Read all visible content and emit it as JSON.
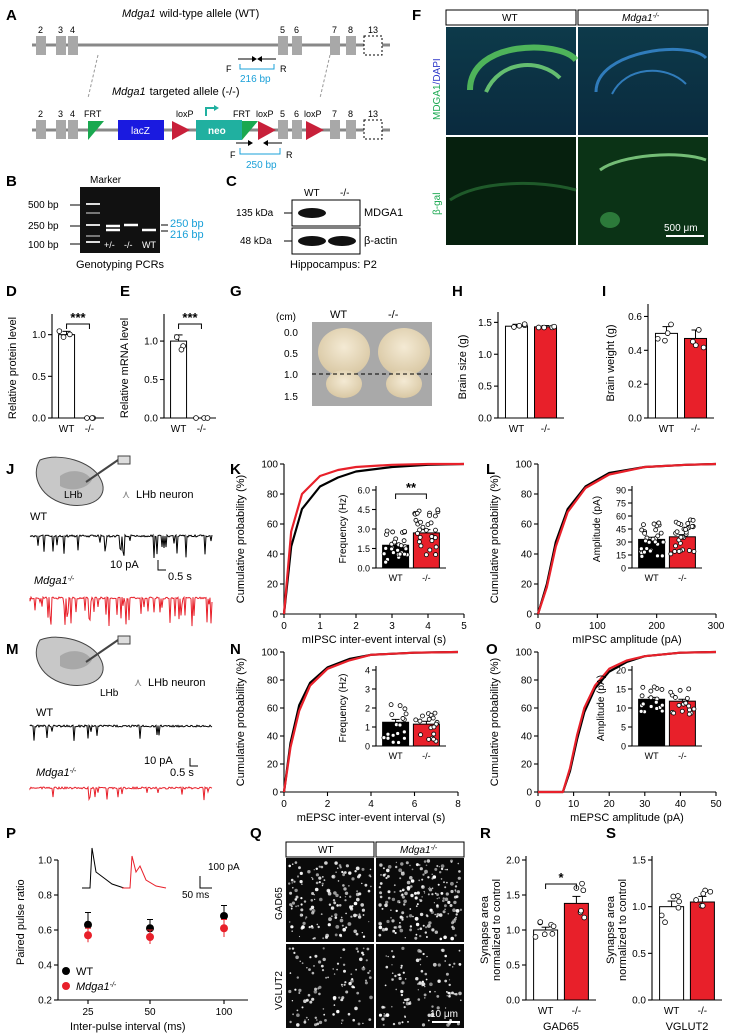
{
  "panels": {
    "A": {
      "label": "A",
      "wt_title_gene": "Mdga1",
      "wt_title_rest": "wild-type allele (WT)",
      "ko_title_gene": "Mdga1",
      "ko_title_rest": "targeted allele (-/-)",
      "exons_top": [
        "2",
        "3",
        "4",
        "5",
        "6",
        "7",
        "8",
        "13"
      ],
      "exons_bottom": [
        "2",
        "3",
        "4",
        "5",
        "6",
        "7",
        "8",
        "13"
      ],
      "primer_f": "F",
      "primer_r": "R",
      "wt_product": "216 bp",
      "ko_product": "250 bp",
      "frt": "FRT",
      "loxp": "loxP",
      "lacz": "lacZ",
      "neo": "neo"
    },
    "B": {
      "label": "B",
      "marker": "Marker",
      "ladder": [
        "500 bp",
        "250 bp",
        "100 bp"
      ],
      "lanes": [
        "+/-",
        "-/-",
        "WT"
      ],
      "band_labels": [
        "250 bp",
        "216 bp"
      ],
      "caption": "Genotyping PCRs"
    },
    "C": {
      "label": "C",
      "lanes": [
        "WT",
        "-/-"
      ],
      "sizes": [
        "135 kDa",
        "48 kDa"
      ],
      "proteins": [
        "MDGA1",
        "β-actin"
      ],
      "caption": "Hippocampus: P2"
    },
    "D": {
      "label": "D",
      "ylabel": "Relative protein level",
      "yticks": [
        "0.0",
        "0.5",
        "1.0"
      ],
      "categories": [
        "WT",
        "-/-"
      ],
      "values": [
        1.0,
        0.0
      ],
      "sig": "***"
    },
    "E": {
      "label": "E",
      "ylabel": "Relative mRNA level",
      "yticks": [
        "0.0",
        "0.5",
        "1.0"
      ],
      "categories": [
        "WT",
        "-/-"
      ],
      "values": [
        1.0,
        0.0
      ],
      "sig": "***"
    },
    "F": {
      "label": "F",
      "col_labels": [
        "WT",
        "Mdga1"
      ],
      "ko_sup": "-/-",
      "row1_a": "MDGA1",
      "row1_b": "/DAPI",
      "row2": "β-gal",
      "scale": "500 μm"
    },
    "G": {
      "label": "G",
      "unit": "(cm)",
      "ruler": [
        "0.0",
        "0.5",
        "1.0",
        "1.5"
      ],
      "cols": [
        "WT",
        "-/-"
      ]
    },
    "H": {
      "label": "H",
      "ylabel": "Brain size (g)",
      "yticks": [
        "0.0",
        "0.5",
        "1.0",
        "1.5"
      ],
      "categories": [
        "WT",
        "-/-"
      ],
      "values": [
        1.44,
        1.43
      ]
    },
    "I": {
      "label": "I",
      "ylabel": "Brain weight (g)",
      "yticks": [
        "0.0",
        "0.2",
        "0.4",
        "0.6"
      ],
      "categories": [
        "WT",
        "-/-"
      ],
      "values": [
        0.5,
        0.47
      ]
    },
    "J": {
      "label": "J",
      "region": "LHb",
      "neuron": "LHb neuron",
      "wt": "WT",
      "ko": "Mdga1",
      "ko_sup": "-/-",
      "scale_y": "10 pA",
      "scale_x": "0.5 s"
    },
    "K": {
      "label": "K",
      "ylabel": "Cumulative probability (%)",
      "xlabel": "mIPSC inter-event interval (s)",
      "xticks": [
        "0",
        "1",
        "2",
        "3",
        "4",
        "5"
      ],
      "yticks": [
        "0",
        "20",
        "40",
        "60",
        "80",
        "100"
      ],
      "inset_ylabel": "Frequency (Hz)",
      "inset_yticks": [
        "0.0",
        "1.5",
        "3.0",
        "4.5",
        "6.0"
      ],
      "inset_categories": [
        "WT",
        "-/-"
      ],
      "inset_values": [
        1.75,
        2.7
      ],
      "sig": "**"
    },
    "L": {
      "label": "L",
      "ylabel": "Cumulative probability (%)",
      "xlabel": "mIPSC amplitude (pA)",
      "xticks": [
        "0",
        "100",
        "200",
        "300"
      ],
      "yticks": [
        "0",
        "20",
        "40",
        "60",
        "80",
        "100"
      ],
      "inset_ylabel": "Amplitude (pA)",
      "inset_yticks": [
        "0",
        "15",
        "30",
        "45",
        "60",
        "75",
        "90"
      ],
      "inset_categories": [
        "WT",
        "-/-"
      ],
      "inset_values": [
        33,
        36
      ]
    },
    "M": {
      "label": "M",
      "region": "LHb",
      "neuron": "LHb neuron",
      "wt": "WT",
      "ko": "Mdga1",
      "ko_sup": "-/-",
      "scale_y": "10 pA",
      "scale_x": "0.5 s"
    },
    "N": {
      "label": "N",
      "ylabel": "Cumulative probability (%)",
      "xlabel": "mEPSC inter-event interval (s)",
      "xticks": [
        "0",
        "2",
        "4",
        "6",
        "8"
      ],
      "yticks": [
        "0",
        "20",
        "40",
        "60",
        "80",
        "100"
      ],
      "inset_ylabel": "Frequency (Hz)",
      "inset_yticks": [
        "0",
        "1",
        "2",
        "3",
        "4"
      ],
      "inset_categories": [
        "WT",
        "-/-"
      ],
      "inset_values": [
        1.25,
        1.15
      ]
    },
    "O": {
      "label": "O",
      "ylabel": "Cumulative probability (%)",
      "xlabel": "mEPSC amplitude (pA)",
      "xticks": [
        "0",
        "10",
        "20",
        "30",
        "40",
        "50"
      ],
      "yticks": [
        "0",
        "20",
        "40",
        "60",
        "80",
        "100"
      ],
      "inset_ylabel": "Amplitude (pA)",
      "inset_yticks": [
        "0",
        "5",
        "10",
        "15",
        "20"
      ],
      "inset_categories": [
        "WT",
        "-/-"
      ],
      "inset_values": [
        12.3,
        11.8
      ]
    },
    "P": {
      "label": "P",
      "ylabel": "Paired pulse ratio",
      "xlabel": "Inter-pulse interval (ms)",
      "xticks": [
        "25",
        "50",
        "100"
      ],
      "yticks": [
        "0.2",
        "0.4",
        "0.6",
        "0.8",
        "1.0"
      ],
      "legend_wt": "WT",
      "legend_ko": "Mdga1",
      "ko_sup": "-/-",
      "scale_y": "100 pA",
      "scale_x": "50 ms"
    },
    "Q": {
      "label": "Q",
      "cols": [
        "WT",
        "Mdga1"
      ],
      "ko_sup": "-/-",
      "rows": [
        "GAD65",
        "VGLUT2"
      ],
      "scale": "10 μm"
    },
    "R": {
      "label": "R",
      "ylabel1": "Synapse area",
      "ylabel2": "normalized to control",
      "yticks": [
        "0.0",
        "0.5",
        "1.0",
        "1.5",
        "2.0"
      ],
      "categories": [
        "WT",
        "-/-"
      ],
      "values": [
        1.0,
        1.38
      ],
      "sig": "*",
      "xlabel": "GAD65"
    },
    "S": {
      "label": "S",
      "ylabel1": "Synapse area",
      "ylabel2": "normalized to control",
      "yticks": [
        "0.0",
        "0.5",
        "1.0",
        "1.5"
      ],
      "categories": [
        "WT",
        "-/-"
      ],
      "values": [
        1.0,
        1.05
      ],
      "xlabel": "VGLUT2"
    }
  },
  "colors": {
    "wt": "#000000",
    "ko": "#e8202a",
    "primer": "#1aa0d8"
  },
  "chart_data": [
    {
      "type": "bar",
      "title": "D",
      "categories": [
        "WT",
        "-/-"
      ],
      "values": [
        1.0,
        0.0
      ],
      "ylabel": "Relative protein level",
      "ylim": [
        0,
        1.2
      ]
    },
    {
      "type": "bar",
      "title": "E",
      "categories": [
        "WT",
        "-/-"
      ],
      "values": [
        1.0,
        0.0
      ],
      "ylabel": "Relative mRNA level",
      "ylim": [
        0,
        1.3
      ]
    },
    {
      "type": "bar",
      "title": "H",
      "categories": [
        "WT",
        "-/-"
      ],
      "values": [
        1.44,
        1.43
      ],
      "ylabel": "Brain size (g)",
      "ylim": [
        0,
        1.6
      ]
    },
    {
      "type": "bar",
      "title": "I",
      "categories": [
        "WT",
        "-/-"
      ],
      "values": [
        0.5,
        0.47
      ],
      "ylabel": "Brain weight (g)",
      "ylim": [
        0,
        0.65
      ]
    },
    {
      "type": "line",
      "title": "K",
      "xlabel": "mIPSC inter-event interval (s)",
      "ylabel": "Cumulative probability (%)",
      "xlim": [
        0,
        5
      ],
      "ylim": [
        0,
        100
      ],
      "series": [
        {
          "name": "WT",
          "x": [
            0,
            0.2,
            0.5,
            1,
            1.5,
            2,
            3,
            4,
            5
          ],
          "y": [
            0,
            45,
            70,
            85,
            91,
            95,
            98,
            99.5,
            100
          ]
        },
        {
          "name": "-/-",
          "x": [
            0,
            0.2,
            0.5,
            1,
            1.5,
            2,
            3,
            4,
            5
          ],
          "y": [
            0,
            55,
            80,
            92,
            96,
            98,
            99.5,
            100,
            100
          ]
        }
      ]
    },
    {
      "type": "bar",
      "title": "K inset",
      "categories": [
        "WT",
        "-/-"
      ],
      "values": [
        1.75,
        2.7
      ],
      "ylabel": "Frequency (Hz)",
      "ylim": [
        0,
        6
      ]
    },
    {
      "type": "line",
      "title": "L",
      "xlabel": "mIPSC amplitude (pA)",
      "ylabel": "Cumulative probability (%)",
      "xlim": [
        0,
        300
      ],
      "ylim": [
        0,
        100
      ],
      "series": [
        {
          "name": "WT",
          "x": [
            0,
            15,
            30,
            50,
            80,
            120,
            180,
            250,
            300
          ],
          "y": [
            0,
            20,
            48,
            70,
            85,
            94,
            98,
            99.5,
            100
          ]
        },
        {
          "name": "-/-",
          "x": [
            0,
            15,
            30,
            50,
            80,
            120,
            180,
            250,
            300
          ],
          "y": [
            0,
            18,
            45,
            68,
            84,
            93,
            98,
            99.5,
            100
          ]
        }
      ]
    },
    {
      "type": "bar",
      "title": "L inset",
      "categories": [
        "WT",
        "-/-"
      ],
      "values": [
        33,
        36
      ],
      "ylabel": "Amplitude (pA)",
      "ylim": [
        0,
        90
      ]
    },
    {
      "type": "line",
      "title": "N",
      "xlabel": "mEPSC inter-event interval (s)",
      "ylabel": "Cumulative probability (%)",
      "xlim": [
        0,
        8
      ],
      "ylim": [
        0,
        100
      ],
      "series": [
        {
          "name": "WT",
          "x": [
            0,
            0.3,
            0.7,
            1.2,
            2,
            3,
            4,
            6,
            8
          ],
          "y": [
            0,
            35,
            62,
            78,
            89,
            95,
            98,
            99.5,
            100
          ]
        },
        {
          "name": "-/-",
          "x": [
            0,
            0.3,
            0.7,
            1.2,
            2,
            3,
            4,
            6,
            8
          ],
          "y": [
            0,
            32,
            58,
            76,
            88,
            94,
            98,
            99.5,
            100
          ]
        }
      ]
    },
    {
      "type": "bar",
      "title": "N inset",
      "categories": [
        "WT",
        "-/-"
      ],
      "values": [
        1.25,
        1.15
      ],
      "ylabel": "Frequency (Hz)",
      "ylim": [
        0,
        4
      ]
    },
    {
      "type": "line",
      "title": "O",
      "xlabel": "mEPSC amplitude (pA)",
      "ylabel": "Cumulative probability (%)",
      "xlim": [
        0,
        50
      ],
      "ylim": [
        0,
        100
      ],
      "series": [
        {
          "name": "WT",
          "x": [
            0,
            7,
            9,
            11,
            13,
            16,
            20,
            25,
            30,
            40,
            50
          ],
          "y": [
            0,
            0,
            15,
            38,
            57,
            74,
            86,
            93,
            97,
            99.5,
            100
          ]
        },
        {
          "name": "-/-",
          "x": [
            0,
            7,
            9,
            11,
            13,
            16,
            20,
            25,
            30,
            40,
            50
          ],
          "y": [
            0,
            0,
            17,
            41,
            60,
            76,
            88,
            94,
            97,
            99.5,
            100
          ]
        }
      ]
    },
    {
      "type": "bar",
      "title": "O inset",
      "categories": [
        "WT",
        "-/-"
      ],
      "values": [
        12.3,
        11.8
      ],
      "ylabel": "Amplitude (pA)",
      "ylim": [
        0,
        20
      ]
    },
    {
      "type": "scatter",
      "title": "P",
      "xlabel": "Inter-pulse interval (ms)",
      "ylabel": "Paired pulse ratio",
      "ylim": [
        0.2,
        1.0
      ],
      "categories": [
        "25",
        "50",
        "100"
      ],
      "series": [
        {
          "name": "WT",
          "values": [
            0.63,
            0.61,
            0.68
          ],
          "errors": [
            0.07,
            0.05,
            0.06
          ]
        },
        {
          "name": "Mdga1-/-",
          "values": [
            0.57,
            0.56,
            0.61
          ],
          "errors": [
            0.04,
            0.04,
            0.05
          ]
        }
      ]
    },
    {
      "type": "bar",
      "title": "R",
      "categories": [
        "WT",
        "-/-"
      ],
      "values": [
        1.0,
        1.38
      ],
      "ylabel": "Synapse area normalized to control",
      "xlabel": "GAD65",
      "ylim": [
        0,
        2.0
      ]
    },
    {
      "type": "bar",
      "title": "S",
      "categories": [
        "WT",
        "-/-"
      ],
      "values": [
        1.0,
        1.05
      ],
      "ylabel": "Synapse area normalized to control",
      "xlabel": "VGLUT2",
      "ylim": [
        0,
        1.5
      ]
    }
  ]
}
